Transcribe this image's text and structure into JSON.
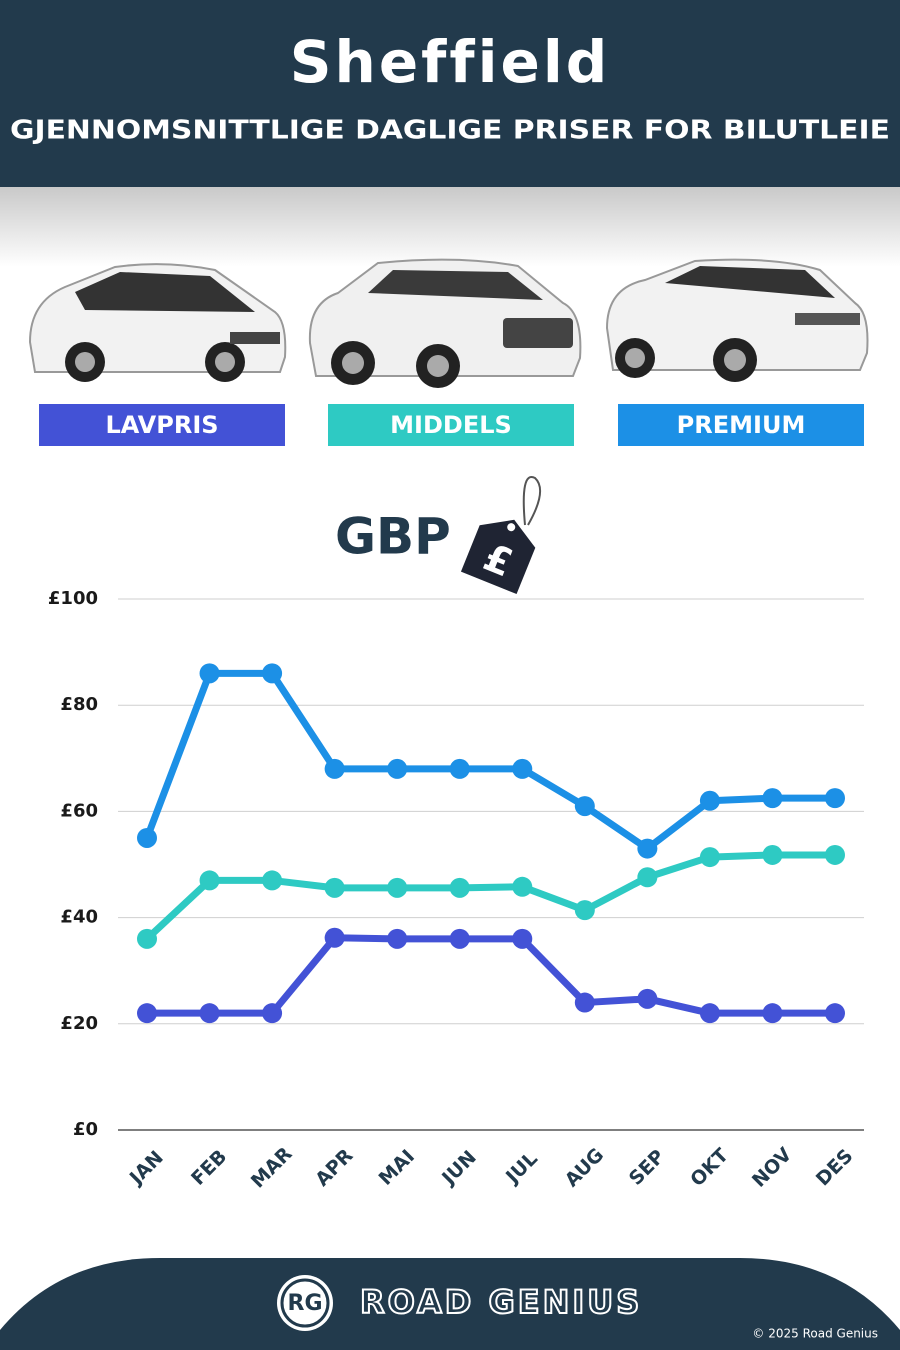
{
  "chart_data": {
    "type": "line",
    "title": "Sheffield",
    "subtitle": "GJENNOMSNITTLIGE DAGLIGE PRISER FOR BILUTLEIE",
    "currency_label": "GBP",
    "currency_symbol": "£",
    "categories": [
      "JAN",
      "FEB",
      "MAR",
      "APR",
      "MAI",
      "JUN",
      "JUL",
      "AUG",
      "SEP",
      "OKT",
      "NOV",
      "DES"
    ],
    "series": [
      {
        "name": "LAVPRIS",
        "color": "#4352d6",
        "values": [
          22,
          22,
          22,
          36.2,
          36,
          36,
          36,
          24,
          24.7,
          22,
          22,
          22
        ]
      },
      {
        "name": "MIDDELS",
        "color": "#2ecac3",
        "values": [
          36,
          47,
          47,
          45.6,
          45.6,
          45.6,
          45.8,
          41.4,
          47.6,
          51.4,
          51.8,
          51.8
        ]
      },
      {
        "name": "PREMIUM",
        "color": "#1c90e6",
        "values": [
          55,
          86,
          86,
          68,
          68,
          68,
          68,
          61,
          53,
          62,
          62.5,
          62.5
        ]
      }
    ],
    "ylim": [
      0,
      100
    ],
    "yticks": [
      {
        "value": 0,
        "label": "£0"
      },
      {
        "value": 20,
        "label": "£20"
      },
      {
        "value": 40,
        "label": "£40"
      },
      {
        "value": 60,
        "label": "£60"
      },
      {
        "value": 80,
        "label": "£80"
      },
      {
        "value": 100,
        "label": "£100"
      }
    ],
    "grid": true
  },
  "footer": {
    "logo": "RG",
    "brand": "ROAD GENIUS",
    "copyright": "© 2025 Road Genius"
  }
}
